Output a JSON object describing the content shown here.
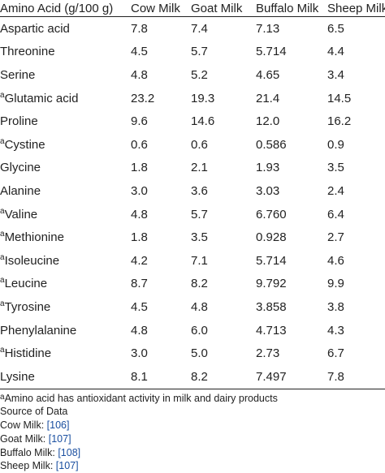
{
  "table": {
    "headers": [
      "Amino Acid (g/100 g)",
      "Cow Milk",
      "Goat Milk",
      "Buffalo Milk",
      "Sheep Milk"
    ],
    "rows": [
      {
        "marker": "",
        "name": "Aspartic acid",
        "values": [
          "7.8",
          "7.4",
          "7.13",
          "6.5"
        ]
      },
      {
        "marker": "",
        "name": "Threonine",
        "values": [
          "4.5",
          "5.7",
          "5.714",
          "4.4"
        ]
      },
      {
        "marker": "",
        "name": "Serine",
        "values": [
          "4.8",
          "5.2",
          "4.65",
          "3.4"
        ]
      },
      {
        "marker": "a",
        "name": "Glutamic acid",
        "values": [
          "23.2",
          "19.3",
          "21.4",
          "14.5"
        ]
      },
      {
        "marker": "",
        "name": "Proline",
        "values": [
          "9.6",
          "14.6",
          "12.0",
          "16.2"
        ]
      },
      {
        "marker": "a",
        "name": "Cystine",
        "values": [
          "0.6",
          "0.6",
          "0.586",
          "0.9"
        ]
      },
      {
        "marker": "",
        "name": "Glycine",
        "values": [
          "1.8",
          "2.1",
          "1.93",
          "3.5"
        ]
      },
      {
        "marker": "",
        "name": "Alanine",
        "values": [
          "3.0",
          "3.6",
          "3.03",
          "2.4"
        ]
      },
      {
        "marker": "a",
        "name": "Valine",
        "values": [
          "4.8",
          "5.7",
          "6.760",
          "6.4"
        ]
      },
      {
        "marker": "a",
        "name": "Methionine",
        "values": [
          "1.8",
          "3.5",
          "0.928",
          "2.7"
        ]
      },
      {
        "marker": "a",
        "name": "Isoleucine",
        "values": [
          "4.2",
          "7.1",
          "5.714",
          "4.6"
        ]
      },
      {
        "marker": "a",
        "name": "Leucine",
        "values": [
          "8.7",
          "8.2",
          "9.792",
          "9.9"
        ]
      },
      {
        "marker": "a",
        "name": "Tyrosine",
        "values": [
          "4.5",
          "4.8",
          "3.858",
          "3.8"
        ]
      },
      {
        "marker": "",
        "name": "Phenylalanine",
        "values": [
          "4.8",
          "6.0",
          "4.713",
          "4.3"
        ]
      },
      {
        "marker": "a",
        "name": "Histidine",
        "values": [
          "3.0",
          "5.0",
          "2.73",
          "6.7"
        ]
      },
      {
        "marker": "",
        "name": "Lysine",
        "values": [
          "8.1",
          "8.2",
          "7.497",
          "7.8"
        ]
      }
    ]
  },
  "footnote": {
    "marker": "a",
    "text": "Amino acid has antioxidant activity in milk and dairy products"
  },
  "sources": {
    "title": "Source of Data",
    "items": [
      {
        "label": "Cow Milk: ",
        "ref": "[106]"
      },
      {
        "label": "Goat Milk: ",
        "ref": "[107]"
      },
      {
        "label": "Buffalo Milk: ",
        "ref": "[108]"
      },
      {
        "label": "Sheep Milk: ",
        "ref": "[107]"
      }
    ]
  },
  "colors": {
    "text": "#222222",
    "link": "#1a4fa0",
    "rule": "#222222"
  }
}
